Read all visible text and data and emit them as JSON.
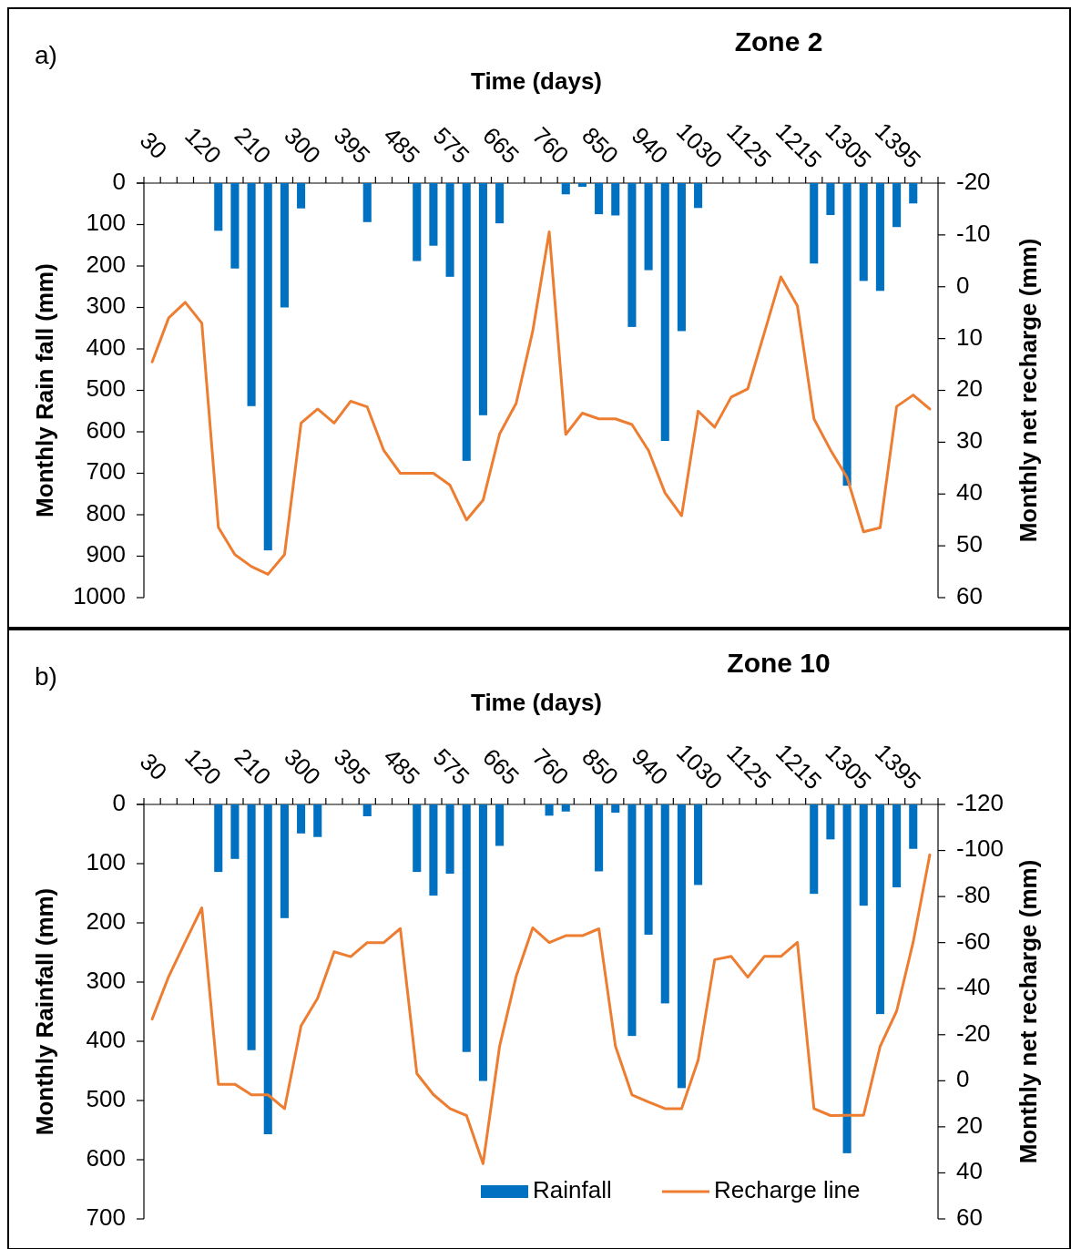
{
  "chart_data": [
    {
      "type": "bar",
      "title": "Zone 2",
      "annotations": [
        "a)"
      ],
      "xlabel": "Time (days)",
      "ylabel": "Monthly Rain fall (mm)",
      "y2label": "Monthly net recharge (mm)",
      "categories": [
        "30",
        null,
        null,
        "120",
        null,
        null,
        "210",
        null,
        null,
        "300",
        null,
        null,
        "395",
        null,
        null,
        "485",
        null,
        null,
        "575",
        null,
        null,
        "665",
        null,
        null,
        "760",
        null,
        null,
        "850",
        null,
        null,
        "940",
        null,
        null,
        "1030",
        null,
        null,
        "1125",
        null,
        null,
        "1215",
        null,
        null,
        "1305",
        null,
        null,
        "1395",
        null,
        null
      ],
      "ylim": [
        1000,
        0
      ],
      "yticks": [
        0,
        100,
        200,
        300,
        400,
        500,
        600,
        700,
        800,
        900,
        1000
      ],
      "y2lim": [
        60,
        -20
      ],
      "y2ticks": [
        -20,
        -10,
        0,
        10,
        20,
        30,
        40,
        50,
        60
      ],
      "legend": false,
      "series": [
        {
          "color": "#0070c0",
          "values": [
            0,
            0,
            0,
            0,
            115,
            206,
            538,
            886,
            300,
            61,
            0,
            0,
            0,
            94,
            0,
            0,
            188,
            151,
            226,
            670,
            560,
            97,
            0,
            0,
            0,
            27,
            9,
            75,
            78,
            347,
            210,
            622,
            357,
            60,
            0,
            0,
            0,
            0,
            0,
            0,
            194,
            77,
            730,
            236,
            260,
            106,
            49,
            0
          ]
        },
        {
          "type": "line",
          "axis": "y2",
          "color": "#ed7d31",
          "values": [
            14.5,
            6,
            3,
            7,
            46.4,
            51.7,
            54,
            55.5,
            51.7,
            26.3,
            23.6,
            26.3,
            22.1,
            23.2,
            31.6,
            36,
            36,
            36,
            38.3,
            45,
            41.2,
            28.4,
            22.5,
            8.6,
            -10.6,
            28.5,
            24.4,
            25.5,
            25.5,
            26.6,
            31.6,
            39.8,
            44.2,
            24,
            27.1,
            21.3,
            19.7,
            8.9,
            -1.9,
            3.7,
            25.5,
            31.5,
            36.8,
            47.3,
            46.5,
            23.1,
            20.9,
            23.6
          ]
        }
      ]
    },
    {
      "type": "bar",
      "title": "Zone 10",
      "annotations": [
        "b)"
      ],
      "xlabel": "Time (days)",
      "ylabel": "Monthly Rainfall (mm)",
      "y2label": "Monthly net recharge (mm)",
      "categories": [
        "30",
        null,
        null,
        "120",
        null,
        null,
        "210",
        null,
        null,
        "300",
        null,
        null,
        "395",
        null,
        null,
        "485",
        null,
        null,
        "575",
        null,
        null,
        "665",
        null,
        null,
        "760",
        null,
        null,
        "850",
        null,
        null,
        "940",
        null,
        null,
        "1030",
        null,
        null,
        "1125",
        null,
        null,
        "1215",
        null,
        null,
        "1305",
        null,
        null,
        "1395",
        null,
        null
      ],
      "ylim": [
        700,
        0
      ],
      "yticks": [
        0,
        100,
        200,
        300,
        400,
        500,
        600,
        700
      ],
      "y2lim": [
        60,
        -120
      ],
      "y2ticks": [
        -120,
        -100,
        -80,
        -60,
        -40,
        -20,
        0,
        20,
        40,
        60
      ],
      "legend": "bottom",
      "series": [
        {
          "name": "Rainfall",
          "color": "#0070c0",
          "values": [
            0,
            0,
            0,
            0,
            114,
            92,
            415,
            557,
            192,
            49,
            55,
            0,
            0,
            20,
            0,
            0,
            114,
            154,
            117,
            418,
            467,
            70,
            0,
            0,
            19,
            12,
            0,
            113,
            14,
            391,
            220,
            336,
            479,
            136,
            0,
            0,
            0,
            0,
            0,
            0,
            151,
            59,
            589,
            171,
            354,
            140,
            75,
            0
          ]
        },
        {
          "type": "line",
          "name": "Recharge line",
          "axis": "y2",
          "color": "#ed7d31",
          "values": [
            -26.8,
            -45.3,
            -60.3,
            -75.1,
            1.5,
            1.5,
            6.1,
            6.1,
            12.1,
            -23.9,
            -35.8,
            -56,
            -53.9,
            -60,
            -60,
            -66.1,
            -3.1,
            6,
            12.1,
            15.1,
            36,
            -15,
            -45.3,
            -66.4,
            -60,
            -63,
            -63,
            -66,
            -15.1,
            6.1,
            9.2,
            12.1,
            12.1,
            -8.9,
            -52.6,
            -54,
            -45,
            -54,
            -54,
            -60.1,
            12.1,
            15.1,
            15,
            15,
            -14.9,
            -30.3,
            -60.3,
            -98.1
          ]
        }
      ]
    }
  ]
}
